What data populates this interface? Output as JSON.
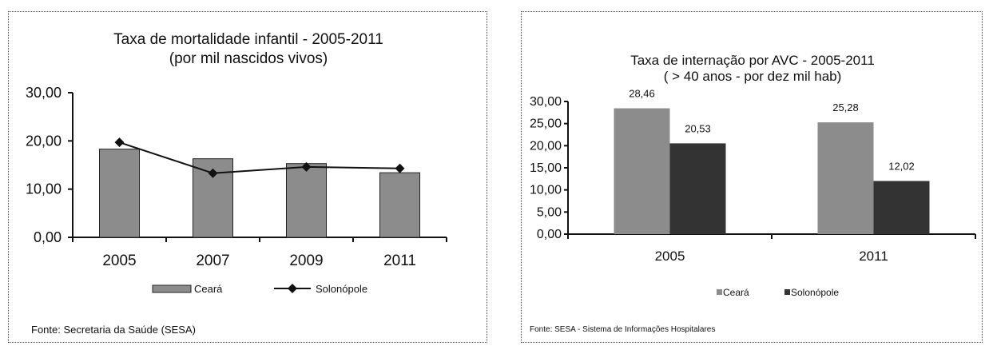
{
  "chart_data": [
    {
      "type": "bar",
      "title": "Taxa de mortalidade infantil - 2005-2011",
      "subtitle": "(por mil nascidos vivos)",
      "categories": [
        "2005",
        "2007",
        "2009",
        "2011"
      ],
      "yticks": [
        "0,00",
        "10,00",
        "20,00",
        "30,00"
      ],
      "ylim": [
        0,
        30
      ],
      "series": [
        {
          "name": "Ceará",
          "kind": "bar",
          "color": "#8c8c8c",
          "values": [
            18.3,
            16.3,
            15.3,
            13.4
          ]
        },
        {
          "name": "Solonópole",
          "kind": "line",
          "color": "#111111",
          "values": [
            19.7,
            13.3,
            14.6,
            14.3
          ]
        }
      ],
      "source": "Fonte: Secretaria da Saúde (SESA)",
      "legend_position": "bottom",
      "grid": false
    },
    {
      "type": "bar",
      "title": "Taxa de internação por AVC - 2005-2011",
      "subtitle": "( > 40 anos - por dez mil hab)",
      "categories": [
        "2005",
        "2011"
      ],
      "yticks": [
        "0,00",
        "5,00",
        "10,00",
        "15,00",
        "20,00",
        "25,00",
        "30,00"
      ],
      "ylim": [
        0,
        30
      ],
      "series": [
        {
          "name": "Ceará",
          "kind": "bar",
          "color": "#8c8c8c",
          "values": [
            28.46,
            25.28
          ],
          "labels": [
            "28,46",
            "25,28"
          ]
        },
        {
          "name": "Solonópole",
          "kind": "bar",
          "color": "#333333",
          "values": [
            20.53,
            12.02
          ],
          "labels": [
            "20,53",
            "12,02"
          ]
        }
      ],
      "source": "Fonte: SESA - Sistema de Informações Hospitalares",
      "legend_position": "bottom",
      "grid": false
    }
  ]
}
